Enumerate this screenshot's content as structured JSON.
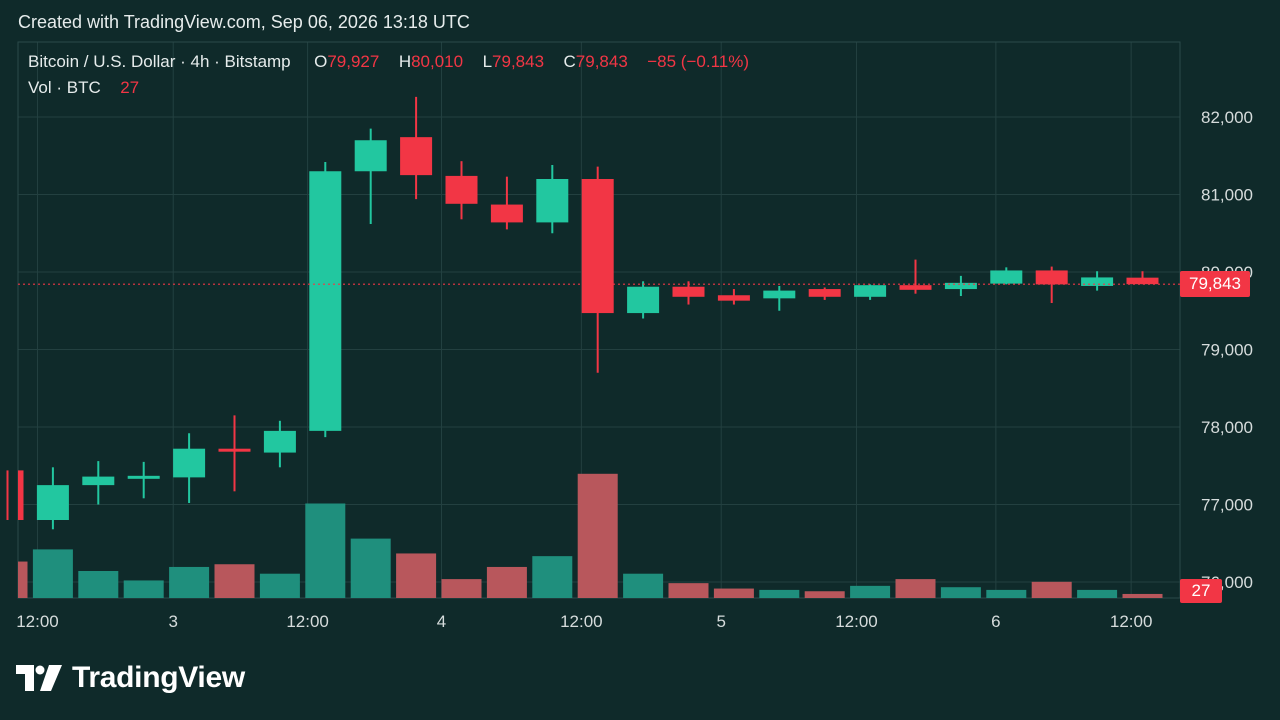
{
  "header": {
    "caption": "Created with TradingView.com, Sep 06, 2026 13:18 UTC"
  },
  "legend": {
    "symbol": "Bitcoin / U.S. Dollar · 4h · Bitstamp",
    "open_label": "O",
    "open_value": "79,927",
    "high_label": "H",
    "high_value": "80,010",
    "low_label": "L",
    "low_value": "79,843",
    "close_label": "C",
    "close_value": "79,843",
    "change": "−85 (−0.11%)",
    "volume_label": "Vol · BTC",
    "volume_value": "27"
  },
  "price_axis": {
    "current_price_tag": "79,843",
    "current_volume_tag": "27"
  },
  "brand": {
    "name": "TradingView"
  },
  "colors": {
    "background": "#0f2a2a",
    "up": "#22c7a0",
    "down": "#f23645",
    "up_volume": "#1f8f7d",
    "down_volume": "#b8575c",
    "grid": "#234040"
  },
  "chart_data": {
    "type": "candlestick",
    "title": "Bitcoin / U.S. Dollar · 4h · Bitstamp",
    "ylim": [
      75600,
      82900
    ],
    "y_ticks": [
      76000,
      77000,
      78000,
      79000,
      80000,
      81000,
      82000
    ],
    "y_tick_labels": [
      "76,000",
      "77,000",
      "78,000",
      "79,000",
      "80,000",
      "81,000",
      "82,000"
    ],
    "x_tick_labels": [
      "12:00",
      "3",
      "12:00",
      "4",
      "12:00",
      "5",
      "12:00",
      "6",
      "12:00"
    ],
    "x_tick_slots": [
      0.66,
      3.65,
      6.61,
      9.56,
      12.64,
      15.72,
      18.7,
      21.77,
      24.75
    ],
    "current_price": 79843,
    "candles": [
      {
        "o": 77440,
        "h": 77440,
        "l": 76800,
        "c": 76800
      },
      {
        "o": 76800,
        "h": 77480,
        "l": 76680,
        "c": 77250
      },
      {
        "o": 77250,
        "h": 77560,
        "l": 77000,
        "c": 77360
      },
      {
        "o": 77360,
        "h": 77550,
        "l": 77080,
        "c": 77370
      },
      {
        "o": 77350,
        "h": 77920,
        "l": 77020,
        "c": 77720
      },
      {
        "o": 77720,
        "h": 78150,
        "l": 77170,
        "c": 77700
      },
      {
        "o": 77670,
        "h": 78080,
        "l": 77480,
        "c": 77950
      },
      {
        "o": 77950,
        "h": 81420,
        "l": 77870,
        "c": 81300
      },
      {
        "o": 81300,
        "h": 81850,
        "l": 80620,
        "c": 81700
      },
      {
        "o": 81740,
        "h": 82260,
        "l": 80940,
        "c": 81250
      },
      {
        "o": 81240,
        "h": 81430,
        "l": 80680,
        "c": 80880
      },
      {
        "o": 80870,
        "h": 81230,
        "l": 80550,
        "c": 80640
      },
      {
        "o": 80640,
        "h": 81380,
        "l": 80500,
        "c": 81200
      },
      {
        "o": 81200,
        "h": 81360,
        "l": 78700,
        "c": 79470
      },
      {
        "o": 79470,
        "h": 79880,
        "l": 79400,
        "c": 79810
      },
      {
        "o": 79810,
        "h": 79880,
        "l": 79580,
        "c": 79680
      },
      {
        "o": 79700,
        "h": 79780,
        "l": 79580,
        "c": 79630
      },
      {
        "o": 79660,
        "h": 79820,
        "l": 79500,
        "c": 79760
      },
      {
        "o": 79780,
        "h": 79800,
        "l": 79640,
        "c": 79680
      },
      {
        "o": 79680,
        "h": 79840,
        "l": 79640,
        "c": 79830
      },
      {
        "o": 79830,
        "h": 80160,
        "l": 79720,
        "c": 79770
      },
      {
        "o": 79780,
        "h": 79950,
        "l": 79690,
        "c": 79860
      },
      {
        "o": 79850,
        "h": 80060,
        "l": 79840,
        "c": 80020
      },
      {
        "o": 80020,
        "h": 80070,
        "l": 79600,
        "c": 79840
      },
      {
        "o": 79820,
        "h": 80010,
        "l": 79760,
        "c": 79930
      },
      {
        "o": 79927,
        "h": 80010,
        "l": 79843,
        "c": 79843
      }
    ],
    "volume": {
      "name": "Vol · BTC",
      "units": "BTC",
      "current": 27,
      "relative_heights": [
        0.27,
        0.36,
        0.2,
        0.13,
        0.23,
        0.25,
        0.18,
        0.7,
        0.44,
        0.33,
        0.14,
        0.23,
        0.31,
        0.92,
        0.18,
        0.11,
        0.07,
        0.06,
        0.05,
        0.09,
        0.14,
        0.08,
        0.06,
        0.12,
        0.06,
        0.03
      ]
    }
  }
}
